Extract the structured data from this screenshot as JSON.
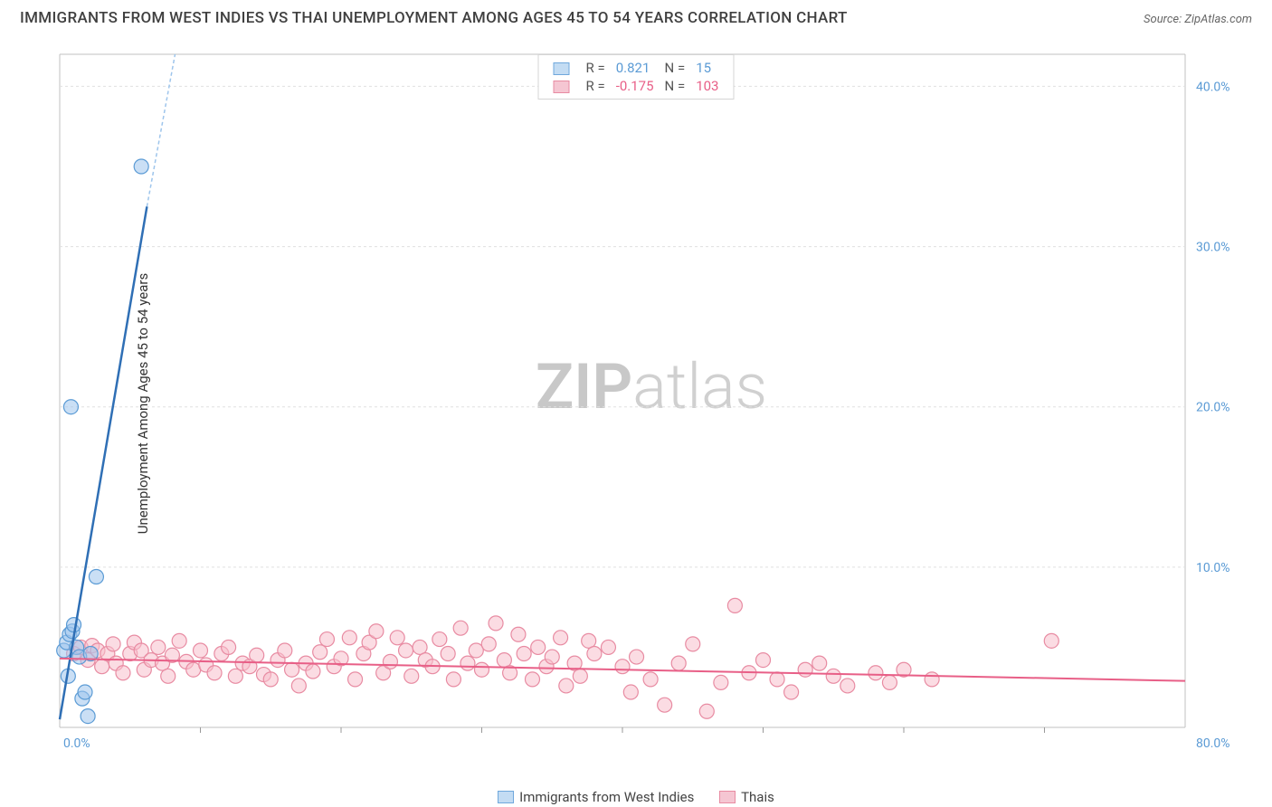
{
  "title": "IMMIGRANTS FROM WEST INDIES VS THAI UNEMPLOYMENT AMONG AGES 45 TO 54 YEARS CORRELATION CHART",
  "source": "Source: ZipAtlas.com",
  "y_axis_label": "Unemployment Among Ages 45 to 54 years",
  "watermark_bold": "ZIP",
  "watermark_light": "atlas",
  "chart": {
    "type": "scatter",
    "background_color": "#ffffff",
    "grid_color": "#e0e0e0",
    "xlim": [
      0,
      80
    ],
    "ylim": [
      0,
      42
    ],
    "x_ticks": [
      0,
      80
    ],
    "x_tick_labels": [
      "0.0%",
      "80.0%"
    ],
    "x_minor_ticks": [
      10,
      20,
      30,
      40,
      50,
      60,
      70
    ],
    "y_ticks": [
      10,
      20,
      30,
      40
    ],
    "y_tick_labels": [
      "10.0%",
      "20.0%",
      "30.0%",
      "40.0%"
    ],
    "marker_radius": 8,
    "series": [
      {
        "id": "west_indies",
        "label": "Immigrants from West Indies",
        "color_fill": "#9ec5ec",
        "color_stroke": "#5b9bd5",
        "trend_color": "#2f6fb5",
        "R": "0.821",
        "N": "15",
        "trend": {
          "x1": 0,
          "y1": 0.5,
          "x2": 6.2,
          "y2": 32.5,
          "dash_to_x": 8.2,
          "dash_to_y": 42
        },
        "points": [
          [
            0.3,
            4.8
          ],
          [
            0.5,
            5.3
          ],
          [
            0.7,
            5.8
          ],
          [
            0.9,
            6.0
          ],
          [
            1.0,
            6.4
          ],
          [
            1.2,
            5.0
          ],
          [
            1.4,
            4.4
          ],
          [
            1.6,
            1.8
          ],
          [
            1.8,
            2.2
          ],
          [
            2.0,
            0.7
          ],
          [
            2.2,
            4.6
          ],
          [
            2.6,
            9.4
          ],
          [
            0.8,
            20.0
          ],
          [
            5.8,
            35.0
          ],
          [
            0.6,
            3.2
          ]
        ]
      },
      {
        "id": "thais",
        "label": "Thais",
        "color_fill": "#f7c0cc",
        "color_stroke": "#e88ba2",
        "trend_color": "#e85f87",
        "R": "-0.175",
        "N": "103",
        "trend": {
          "x1": 0,
          "y1": 4.3,
          "x2": 80,
          "y2": 2.9
        },
        "points": [
          [
            1.0,
            4.6
          ],
          [
            1.5,
            5.0
          ],
          [
            2.0,
            4.2
          ],
          [
            2.3,
            5.1
          ],
          [
            2.7,
            4.8
          ],
          [
            3.0,
            3.8
          ],
          [
            3.4,
            4.6
          ],
          [
            3.8,
            5.2
          ],
          [
            4.0,
            4.0
          ],
          [
            4.5,
            3.4
          ],
          [
            5.0,
            4.6
          ],
          [
            5.3,
            5.3
          ],
          [
            5.8,
            4.8
          ],
          [
            6.0,
            3.6
          ],
          [
            6.5,
            4.2
          ],
          [
            7.0,
            5.0
          ],
          [
            7.3,
            4.0
          ],
          [
            7.7,
            3.2
          ],
          [
            8.0,
            4.5
          ],
          [
            8.5,
            5.4
          ],
          [
            9.0,
            4.1
          ],
          [
            9.5,
            3.6
          ],
          [
            10.0,
            4.8
          ],
          [
            10.4,
            3.9
          ],
          [
            11.0,
            3.4
          ],
          [
            11.5,
            4.6
          ],
          [
            12.0,
            5.0
          ],
          [
            12.5,
            3.2
          ],
          [
            13.0,
            4.0
          ],
          [
            13.5,
            3.8
          ],
          [
            14.0,
            4.5
          ],
          [
            14.5,
            3.3
          ],
          [
            15.0,
            3.0
          ],
          [
            15.5,
            4.2
          ],
          [
            16.0,
            4.8
          ],
          [
            16.5,
            3.6
          ],
          [
            17.0,
            2.6
          ],
          [
            17.5,
            4.0
          ],
          [
            18.0,
            3.5
          ],
          [
            18.5,
            4.7
          ],
          [
            19.0,
            5.5
          ],
          [
            19.5,
            3.8
          ],
          [
            20.0,
            4.3
          ],
          [
            20.6,
            5.6
          ],
          [
            21.0,
            3.0
          ],
          [
            21.6,
            4.6
          ],
          [
            22.0,
            5.3
          ],
          [
            22.5,
            6.0
          ],
          [
            23.0,
            3.4
          ],
          [
            23.5,
            4.1
          ],
          [
            24.0,
            5.6
          ],
          [
            24.6,
            4.8
          ],
          [
            25.0,
            3.2
          ],
          [
            25.6,
            5.0
          ],
          [
            26.0,
            4.2
          ],
          [
            26.5,
            3.8
          ],
          [
            27.0,
            5.5
          ],
          [
            27.6,
            4.6
          ],
          [
            28.0,
            3.0
          ],
          [
            28.5,
            6.2
          ],
          [
            29.0,
            4.0
          ],
          [
            29.6,
            4.8
          ],
          [
            30.0,
            3.6
          ],
          [
            30.5,
            5.2
          ],
          [
            31.0,
            6.5
          ],
          [
            31.6,
            4.2
          ],
          [
            32.0,
            3.4
          ],
          [
            32.6,
            5.8
          ],
          [
            33.0,
            4.6
          ],
          [
            33.6,
            3.0
          ],
          [
            34.0,
            5.0
          ],
          [
            34.6,
            3.8
          ],
          [
            35.0,
            4.4
          ],
          [
            35.6,
            5.6
          ],
          [
            36.0,
            2.6
          ],
          [
            36.6,
            4.0
          ],
          [
            37.0,
            3.2
          ],
          [
            37.6,
            5.4
          ],
          [
            38.0,
            4.6
          ],
          [
            39.0,
            5.0
          ],
          [
            40.0,
            3.8
          ],
          [
            40.6,
            2.2
          ],
          [
            41.0,
            4.4
          ],
          [
            42.0,
            3.0
          ],
          [
            43.0,
            1.4
          ],
          [
            44.0,
            4.0
          ],
          [
            45.0,
            5.2
          ],
          [
            46.0,
            1.0
          ],
          [
            47.0,
            2.8
          ],
          [
            48.0,
            7.6
          ],
          [
            49.0,
            3.4
          ],
          [
            50.0,
            4.2
          ],
          [
            51.0,
            3.0
          ],
          [
            52.0,
            2.2
          ],
          [
            53.0,
            3.6
          ],
          [
            54.0,
            4.0
          ],
          [
            55.0,
            3.2
          ],
          [
            56.0,
            2.6
          ],
          [
            58.0,
            3.4
          ],
          [
            59.0,
            2.8
          ],
          [
            60.0,
            3.6
          ],
          [
            62.0,
            3.0
          ],
          [
            70.5,
            5.4
          ]
        ]
      }
    ]
  },
  "legend_bottom": [
    {
      "swatch": "sw-blue",
      "label": "Immigrants from West Indies"
    },
    {
      "swatch": "sw-pink",
      "label": "Thais"
    }
  ]
}
